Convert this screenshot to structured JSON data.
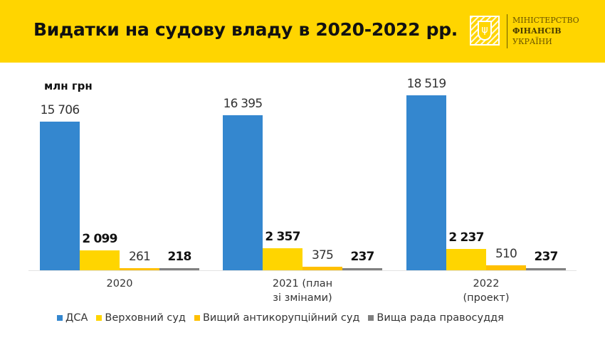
{
  "header": {
    "title": "Видатки на судову владу в 2020-2022 рр.",
    "logo": {
      "icon": "trident-emblem-icon",
      "line1": "МІНІСТЕРСТВО",
      "line2": "ФІНАНСІВ",
      "line3": "УКРАЇНИ"
    },
    "background": "#FFD500"
  },
  "chart_data": {
    "type": "bar",
    "title": "Видатки на судову владу в 2020-2022 рр.",
    "ylabel": "млн грн",
    "xlabel": "",
    "categories": [
      "2020",
      "2021 (план зі змінами)",
      "2022 (проект)"
    ],
    "category_lines": [
      [
        "2020"
      ],
      [
        "2021 (план",
        "зі змінами)"
      ],
      [
        "2022",
        "(проект)"
      ]
    ],
    "series": [
      {
        "name": "ДСА",
        "color": "#3487CF",
        "values": [
          15706,
          16395,
          18519
        ],
        "labels": [
          "15 706",
          "16 395",
          "18 519"
        ]
      },
      {
        "name": "Верховний суд",
        "color": "#FFD500",
        "values": [
          2099,
          2357,
          2237
        ],
        "labels": [
          "2 099",
          "2 357",
          "2 237"
        ]
      },
      {
        "name": "Вищий антикорупційний суд",
        "color": "#FFC000",
        "values": [
          261,
          375,
          510
        ],
        "labels": [
          "261",
          "375",
          "510"
        ]
      },
      {
        "name": "Вища рада правосуддя",
        "color": "#808080",
        "values": [
          218,
          237,
          237
        ],
        "labels": [
          "218",
          "237",
          "237"
        ]
      }
    ],
    "ylim": [
      0,
      18519
    ],
    "grid": false,
    "legend_position": "bottom"
  }
}
